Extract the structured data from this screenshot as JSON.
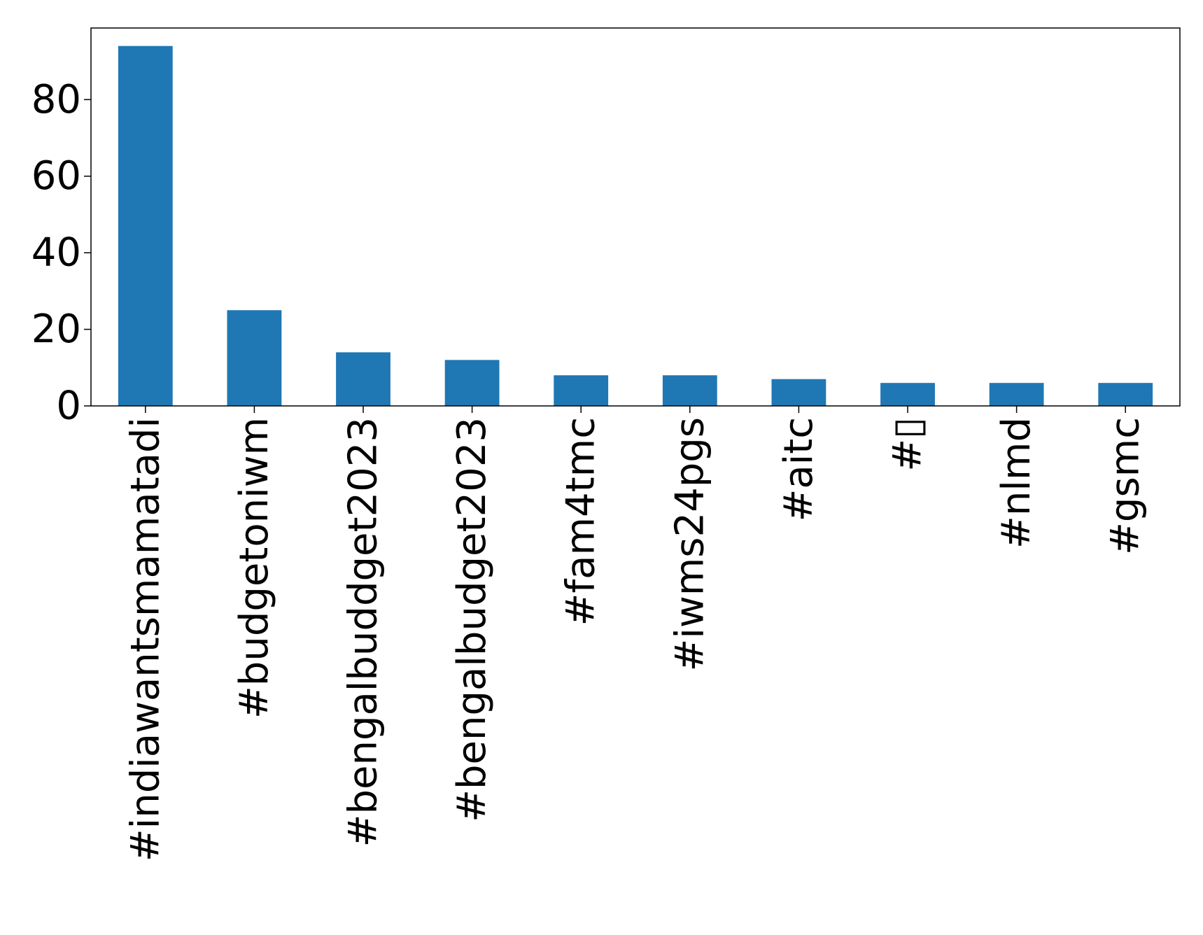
{
  "chart_data": {
    "type": "bar",
    "title": "",
    "xlabel": "",
    "ylabel": "",
    "categories": [
      "#indiawantsmamatadi",
      "#budgetoniwm",
      "#bengalbuddget2023",
      "#bengalbudget2023",
      "#fam4tmc",
      "#iwms24pgs",
      "#aitc",
      "#▯",
      "#nlmd",
      "#gsmc"
    ],
    "values": [
      94,
      25,
      14,
      12,
      8,
      8,
      7,
      6,
      6,
      6
    ],
    "ylim": [
      0,
      98.7
    ],
    "yticks": [
      0,
      20,
      40,
      60,
      80
    ],
    "grid": false,
    "legend": "none",
    "bar_color": "#1f77b4"
  }
}
